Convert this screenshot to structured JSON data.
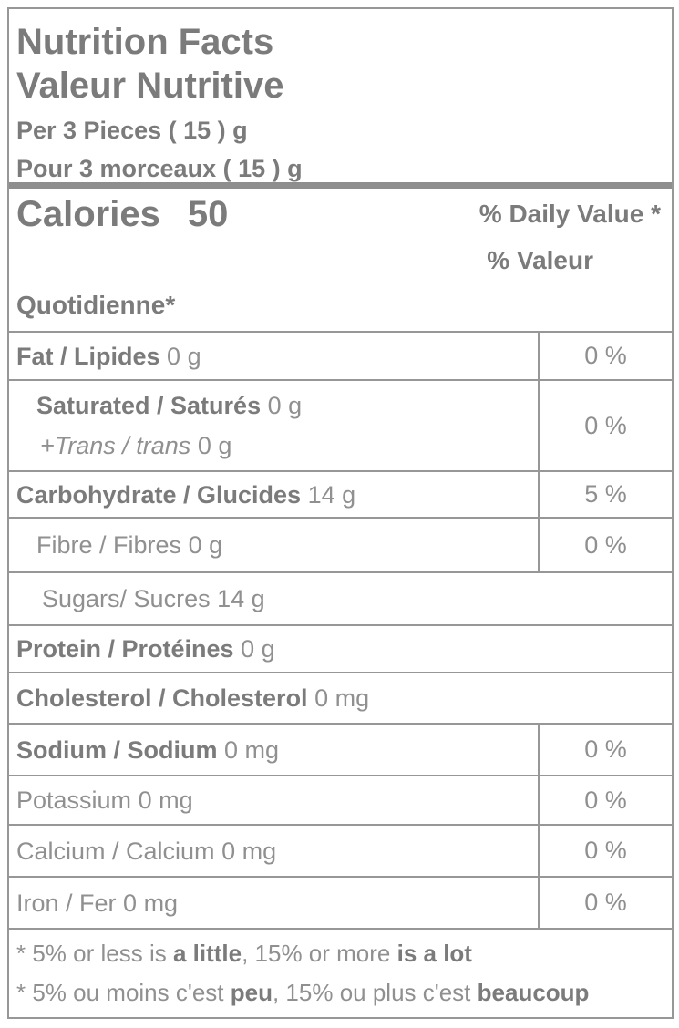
{
  "header": {
    "title_en": "Nutrition Facts",
    "title_fr": "Valeur Nutritive",
    "serving_en": "Per 3 Pieces ( 15 ) g",
    "serving_fr": "Pour 3 morceaux ( 15 ) g"
  },
  "calories": {
    "label": "Calories",
    "value": "50"
  },
  "dv_header": {
    "line1": "% Daily Value *",
    "line2": "% Valeur",
    "line3": "Quotidienne*"
  },
  "rows": [
    {
      "label": "Fat / Lipides",
      "amount": "0 g",
      "dv": "0 %"
    },
    {
      "label": "Saturated / Saturés",
      "amount": "0 g",
      "sub_label": "+Trans / trans",
      "sub_amount": "0 g",
      "dv": "0 %"
    },
    {
      "label": "Carbohydrate / Glucides",
      "amount": "14 g",
      "dv": "5 %"
    },
    {
      "label": "Fibre / Fibres",
      "amount": "0 g",
      "dv": "0 %"
    },
    {
      "label": "Sugars/ Sucres",
      "amount": "14 g",
      "dv": ""
    },
    {
      "label": "Protein / Protéines",
      "amount": "0 g",
      "dv": ""
    },
    {
      "label": "Cholesterol / Cholesterol",
      "amount": "0 mg",
      "dv": ""
    },
    {
      "label": "Sodium / Sodium",
      "amount": "0 mg",
      "dv": "0 %"
    },
    {
      "label": "Potassium",
      "amount": "0 mg",
      "dv": "0 %"
    },
    {
      "label": "Calcium / Calcium",
      "amount": "0 mg",
      "dv": "0 %"
    },
    {
      "label": "Iron / Fer",
      "amount": "0 mg",
      "dv": "0 %"
    }
  ],
  "footnotes": {
    "en": {
      "t1": "* 5% or less is ",
      "b1": "a little",
      "t2": ", 15% or more ",
      "b2": "is a lot"
    },
    "fr": {
      "t1": "* 5% ou moins c'est ",
      "b1": "peu",
      "t2": ", 15% ou plus c'est ",
      "b2": "beaucoup"
    }
  },
  "colors": {
    "text_bold": "#7b7b7b",
    "text_regular": "#909090",
    "border": "#979797",
    "thick_divider": "#8e8e8e",
    "background": "#ffffff"
  }
}
